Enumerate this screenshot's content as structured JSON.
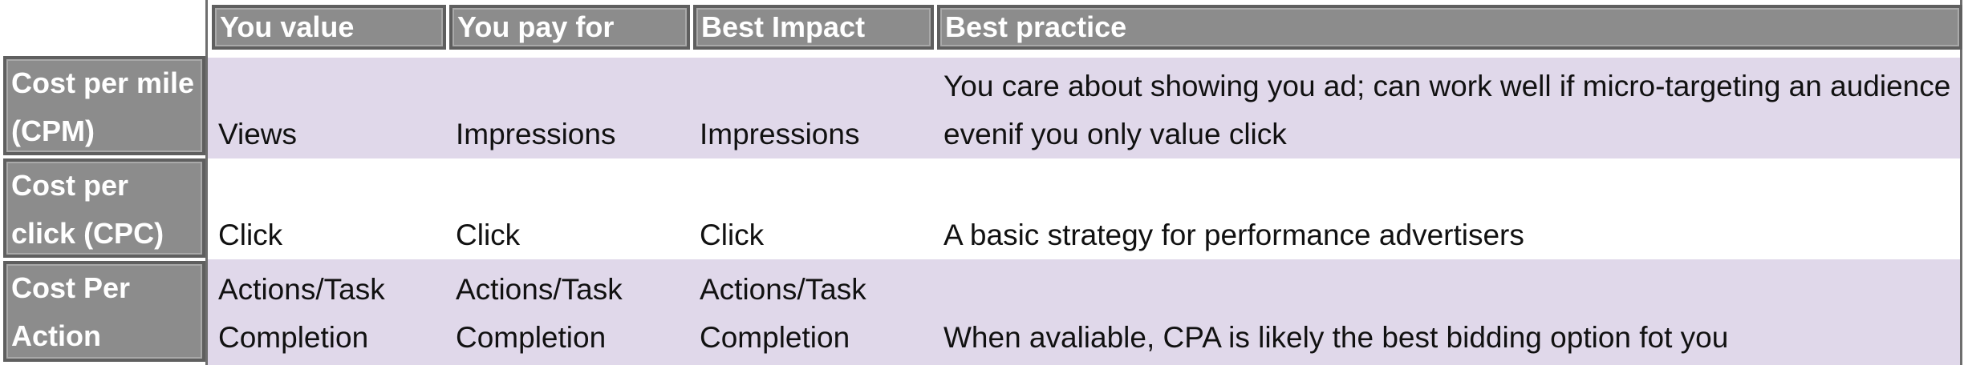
{
  "headers": {
    "you_value": "You value",
    "you_pay_for": "You pay for",
    "best_impact": "Best Impact",
    "best_practice": "Best practice"
  },
  "rows": [
    {
      "name": "Cost per mile (CPM)",
      "you_value": "Views",
      "you_pay_for": "Impressions",
      "best_impact": "Impressions",
      "best_practice": "You care about showing you ad; can work well if micro-targeting an audience evenif you only value click"
    },
    {
      "name": "Cost per click (CPC)",
      "you_value": "Click",
      "you_pay_for": "Click",
      "best_impact": "Click",
      "best_practice": "A basic strategy for performance advertisers"
    },
    {
      "name": "Cost Per Action",
      "you_value": "Actions/Task Completion",
      "you_pay_for": "Actions/Task Completion",
      "best_impact": "Actions/Task Completion",
      "best_practice": "When avaliable, CPA is likely the best bidding option fot you"
    }
  ],
  "colors": {
    "header_bg": "#8c8c8c",
    "header_border": "#5f5f5f",
    "row_shade": "#e0d8ea",
    "header_text": "#ffffff"
  }
}
